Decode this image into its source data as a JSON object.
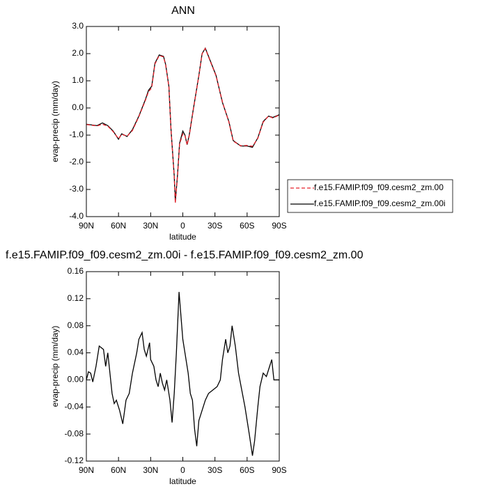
{
  "chart_data": [
    {
      "type": "line",
      "title": "ANN",
      "xlabel": "latitude",
      "ylabel": "evap-precip (mm/day)",
      "x": [
        90,
        80,
        75,
        70,
        65,
        60,
        57,
        52,
        47,
        41,
        35,
        32,
        29,
        26,
        22,
        18,
        16,
        13,
        11,
        8,
        7,
        5,
        3,
        0,
        -2,
        -4,
        -6,
        -10,
        -15,
        -18,
        -21,
        -24,
        -31,
        -37,
        -43,
        -47,
        -54,
        -60,
        -65,
        -70,
        -75,
        -80,
        -84,
        -90
      ],
      "series": [
        {
          "name": "f.e15.FAMIP.f09_f09.cesm2_zm.00",
          "color": "#e8202a",
          "dash": true,
          "values": [
            -0.61,
            -0.66,
            -0.6,
            -0.67,
            -0.87,
            -1.13,
            -0.97,
            -1.04,
            -0.83,
            -0.32,
            0.27,
            0.6,
            0.74,
            1.62,
            1.93,
            1.88,
            1.58,
            0.78,
            -0.82,
            -2.52,
            -3.5,
            -2.55,
            -1.33,
            -0.95,
            -1.02,
            -1.36,
            -1.03,
            -0.02,
            1.19,
            1.99,
            2.19,
            1.88,
            1.18,
            0.22,
            -0.52,
            -1.22,
            -1.39,
            -1.38,
            -1.41,
            -1.12,
            -0.52,
            -0.3,
            -0.37,
            -0.26
          ]
        },
        {
          "name": "f.e15.FAMIP.f09_f09.cesm2_zm.00i",
          "color": "#000000",
          "dash": false,
          "values": [
            -0.6,
            -0.65,
            -0.55,
            -0.65,
            -0.85,
            -1.15,
            -0.95,
            -1.05,
            -0.8,
            -0.3,
            0.3,
            0.65,
            0.8,
            1.65,
            1.95,
            1.9,
            1.6,
            0.8,
            -0.8,
            -2.5,
            -3.45,
            -2.5,
            -1.3,
            -0.85,
            -1.0,
            -1.35,
            -1.0,
            0.0,
            1.2,
            2.0,
            2.2,
            1.9,
            1.2,
            0.2,
            -0.5,
            -1.2,
            -1.4,
            -1.4,
            -1.45,
            -1.1,
            -0.5,
            -0.3,
            -0.35,
            -0.25
          ]
        }
      ],
      "xlim": [
        90,
        -90
      ],
      "xticks": [
        {
          "value": 90,
          "label": "90N"
        },
        {
          "value": 60,
          "label": "60N"
        },
        {
          "value": 30,
          "label": "30N"
        },
        0,
        {
          "value": -30,
          "label": "30S"
        },
        {
          "value": -60,
          "label": "60S"
        },
        {
          "value": -90,
          "label": "90S"
        }
      ],
      "ylim": [
        -4,
        3
      ],
      "yticks": [
        {
          "value": -4,
          "label": "-4.0"
        },
        {
          "value": -3,
          "label": "-3.0"
        },
        {
          "value": -2,
          "label": "-2.0"
        },
        {
          "value": -1,
          "label": "-1.0"
        },
        {
          "value": 0,
          "label": "0.0"
        },
        {
          "value": 1,
          "label": "1.0"
        },
        {
          "value": 2,
          "label": "2.0"
        },
        {
          "value": 3,
          "label": "3.0"
        }
      ],
      "legend": "right"
    },
    {
      "type": "line",
      "title": "f.e15.FAMIP.f09_f09.cesm2_zm.00i - f.e15.FAMIP.f09_f09.cesm2_zm.00",
      "xlabel": "latitude",
      "ylabel": "evap-precip (mm/day)",
      "x": [
        90,
        88,
        86,
        84,
        81,
        78,
        74,
        72,
        70,
        68,
        66,
        64,
        62,
        59,
        56,
        53,
        50,
        47,
        43,
        41,
        38,
        36,
        34,
        31,
        30,
        27,
        25,
        23,
        21,
        19,
        17,
        15,
        12,
        10,
        8,
        6,
        3.5,
        0,
        -2,
        -5,
        -7,
        -9,
        -11,
        -13,
        -15,
        -18,
        -21,
        -24,
        -28,
        -32,
        -35,
        -37,
        -40,
        -42,
        -44,
        -46,
        -49,
        -52,
        -55,
        -58,
        -62,
        -65,
        -67,
        -70,
        -72,
        -75,
        -78,
        -81,
        -83,
        -85,
        -90
      ],
      "series": [
        {
          "color": "#000000",
          "dash": false,
          "values": [
            0.0,
            0.012,
            0.01,
            -0.003,
            0.02,
            0.05,
            0.045,
            0.02,
            0.04,
            0.01,
            -0.02,
            -0.035,
            -0.03,
            -0.045,
            -0.065,
            -0.03,
            -0.02,
            0.01,
            0.04,
            0.06,
            0.07,
            0.045,
            0.035,
            0.055,
            0.03,
            0.02,
            0.0,
            -0.01,
            0.01,
            -0.005,
            -0.015,
            0.0,
            -0.03,
            -0.063,
            -0.02,
            0.04,
            0.13,
            0.06,
            0.04,
            0.01,
            -0.02,
            -0.03,
            -0.073,
            -0.098,
            -0.06,
            -0.045,
            -0.03,
            -0.02,
            -0.015,
            -0.01,
            0.0,
            0.03,
            0.06,
            0.04,
            0.05,
            0.08,
            0.05,
            0.01,
            -0.015,
            -0.04,
            -0.08,
            -0.112,
            -0.09,
            -0.04,
            -0.01,
            0.01,
            0.005,
            0.02,
            0.03,
            0.0,
            0.0
          ]
        }
      ],
      "xlim": [
        90,
        -90
      ],
      "xticks": [
        {
          "value": 90,
          "label": "90N"
        },
        {
          "value": 60,
          "label": "60N"
        },
        {
          "value": 30,
          "label": "30N"
        },
        0,
        {
          "value": -30,
          "label": "30S"
        },
        {
          "value": -60,
          "label": "60S"
        },
        {
          "value": -90,
          "label": "90S"
        }
      ],
      "ylim": [
        -0.12,
        0.16
      ],
      "yticks": [
        -0.12,
        -0.08,
        -0.04,
        {
          "value": 0,
          "label": "0.00"
        },
        0.04,
        0.08,
        0.12,
        0.16
      ]
    }
  ]
}
